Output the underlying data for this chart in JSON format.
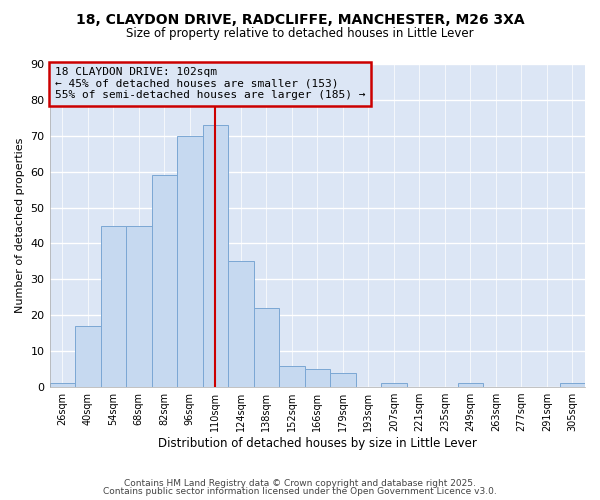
{
  "title1": "18, CLAYDON DRIVE, RADCLIFFE, MANCHESTER, M26 3XA",
  "title2": "Size of property relative to detached houses in Little Lever",
  "xlabel": "Distribution of detached houses by size in Little Lever",
  "ylabel": "Number of detached properties",
  "footer1": "Contains HM Land Registry data © Crown copyright and database right 2025.",
  "footer2": "Contains public sector information licensed under the Open Government Licence v3.0.",
  "bin_labels": [
    "26sqm",
    "40sqm",
    "54sqm",
    "68sqm",
    "82sqm",
    "96sqm",
    "110sqm",
    "124sqm",
    "138sqm",
    "152sqm",
    "166sqm",
    "179sqm",
    "193sqm",
    "207sqm",
    "221sqm",
    "235sqm",
    "249sqm",
    "263sqm",
    "277sqm",
    "291sqm",
    "305sqm"
  ],
  "bar_values": [
    1,
    17,
    45,
    45,
    59,
    70,
    73,
    35,
    22,
    6,
    5,
    4,
    0,
    1,
    0,
    0,
    1,
    0,
    0,
    0,
    1
  ],
  "bar_color": "#c6d9f0",
  "bar_edge_color": "#7ba7d4",
  "bg_color": "#dce6f5",
  "plot_bg_color": "#dce6f5",
  "outer_bg": "#ffffff",
  "grid_color": "#ffffff",
  "vline_x": 6.0,
  "vline_color": "#cc0000",
  "annotation_title": "18 CLAYDON DRIVE: 102sqm",
  "annotation_line1": "← 45% of detached houses are smaller (153)",
  "annotation_line2": "55% of semi-detached houses are larger (185) →",
  "annotation_box_color": "#cc0000",
  "ylim": [
    0,
    90
  ],
  "yticks": [
    0,
    10,
    20,
    30,
    40,
    50,
    60,
    70,
    80,
    90
  ]
}
